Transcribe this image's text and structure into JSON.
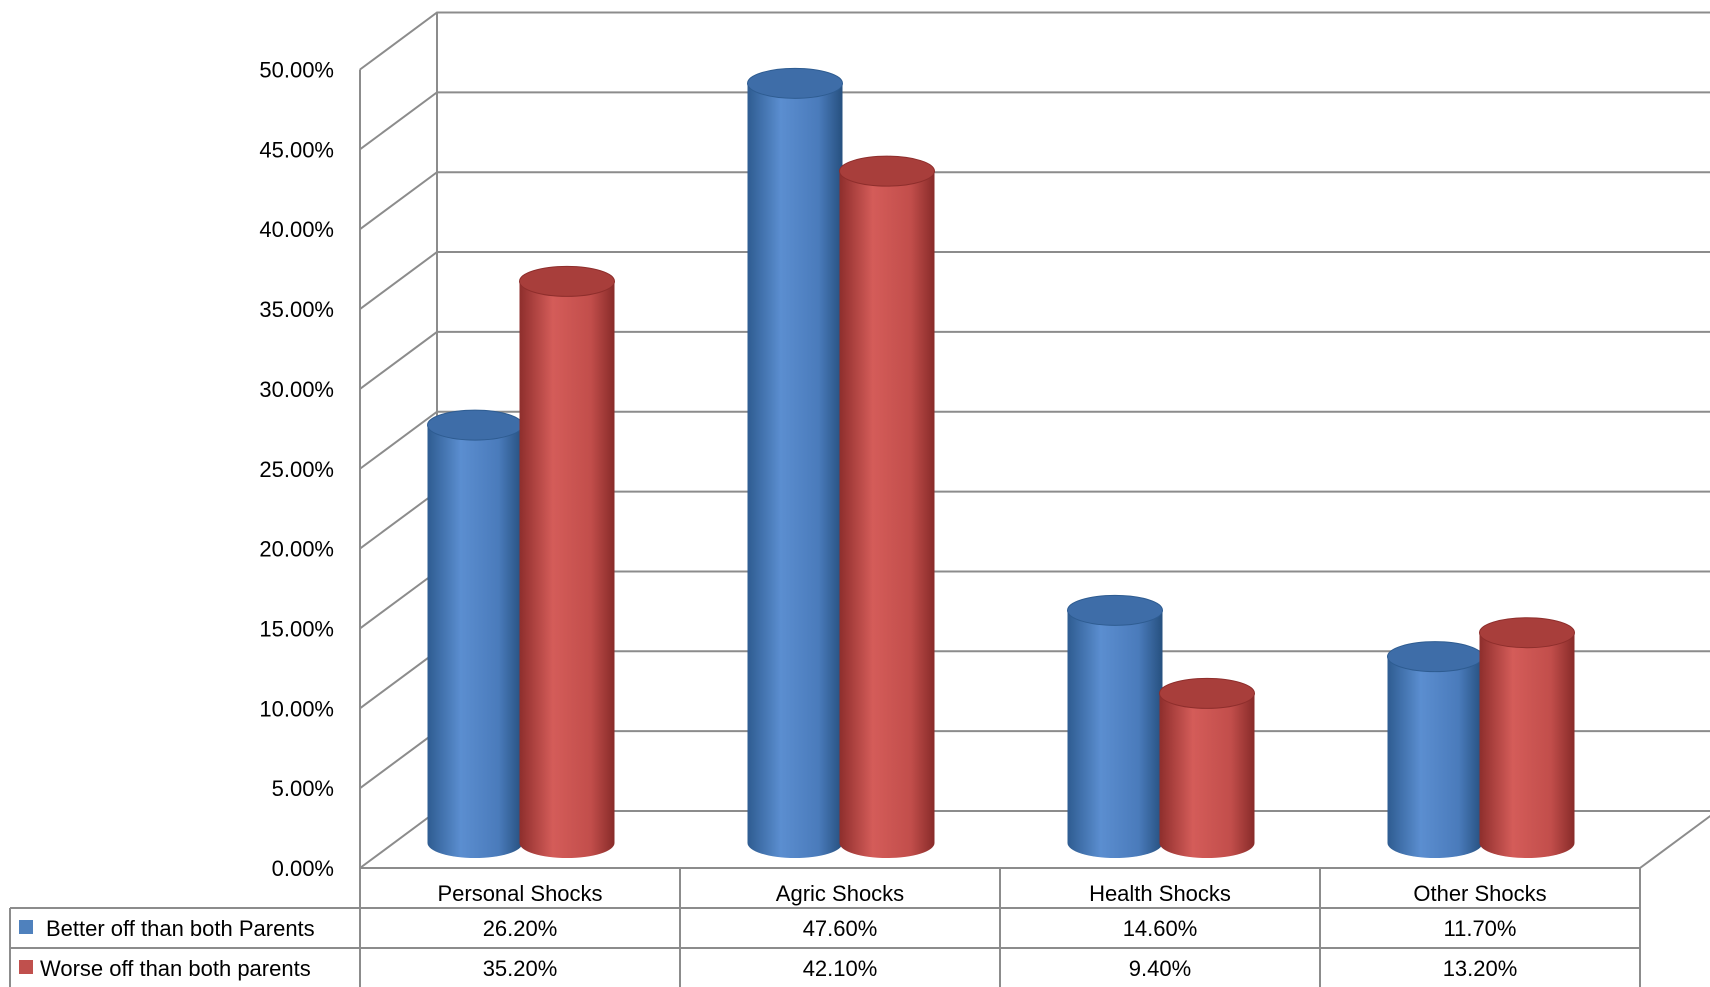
{
  "chart_data": {
    "type": "bar",
    "style": "3d-cylinder",
    "categories": [
      "Personal Shocks",
      "Agric Shocks",
      "Health Shocks",
      "Other Shocks"
    ],
    "series": [
      {
        "name": "Better off than both Parents",
        "color": "#4F81BD",
        "values": [
          26.2,
          47.6,
          14.6,
          11.7
        ],
        "labels": [
          "26.20%",
          "47.60%",
          "14.60%",
          "11.70%"
        ]
      },
      {
        "name": "Worse off than both parents",
        "color": "#C0504D",
        "values": [
          35.2,
          42.1,
          9.4,
          13.2
        ],
        "labels": [
          "35.20%",
          "42.10%",
          "9.40%",
          "13.20%"
        ]
      }
    ],
    "ylim": [
      0,
      50
    ],
    "yticks": [
      "0.00%",
      "5.00%",
      "10.00%",
      "15.00%",
      "20.00%",
      "25.00%",
      "30.00%",
      "35.00%",
      "40.00%",
      "45.00%",
      "50.00%"
    ],
    "grid": true,
    "data_table": true,
    "title": "",
    "xlabel": "",
    "ylabel": ""
  }
}
